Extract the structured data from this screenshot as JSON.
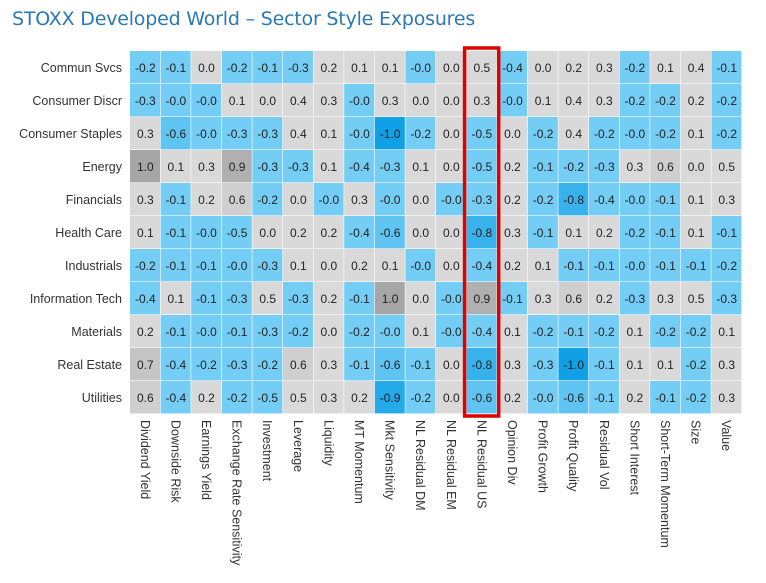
{
  "chart_data": {
    "type": "heatmap",
    "title": "STOXX Developed World – Sector Style Exposures",
    "rows": [
      "Commun Svcs",
      "Consumer Discr",
      "Consumer Staples",
      "Energy",
      "Financials",
      "Health Care",
      "Industrials",
      "Information Tech",
      "Materials",
      "Real Estate",
      "Utilities"
    ],
    "columns": [
      "Dividend Yield",
      "Downside Risk",
      "Earnings Yield",
      "Exchange Rate Sensitivity",
      "Investment",
      "Leverage",
      "Liquidity",
      "MT Momentum",
      "Mkt Sensitivity",
      "NL Residual DM",
      "NL Residual EM",
      "NL Residual US",
      "Opinion Div",
      "Profit Growth",
      "Profit Quality",
      "Residual Vol",
      "Short Interest",
      "Short-Term Momentum",
      "Size",
      "Value"
    ],
    "values": [
      [
        "-0.2",
        "-0.1",
        "0.0",
        "-0.2",
        "-0.1",
        "-0.3",
        "0.2",
        "0.1",
        "0.1",
        "-0.0",
        "0.0",
        "0.5",
        "-0.4",
        "0.0",
        "0.2",
        "0.3",
        "-0.2",
        "0.1",
        "0.4",
        "-0.1"
      ],
      [
        "-0.3",
        "-0.0",
        "-0.0",
        "0.1",
        "0.0",
        "0.4",
        "0.3",
        "-0.0",
        "0.3",
        "0.0",
        "0.0",
        "0.3",
        "-0.0",
        "0.1",
        "0.4",
        "0.3",
        "-0.2",
        "-0.2",
        "0.2",
        "-0.2"
      ],
      [
        "0.3",
        "-0.6",
        "-0.0",
        "-0.3",
        "-0.3",
        "0.4",
        "0.1",
        "-0.0",
        "-1.0",
        "-0.2",
        "0.0",
        "-0.5",
        "0.0",
        "-0.2",
        "0.4",
        "-0.2",
        "-0.0",
        "-0.2",
        "0.1",
        "-0.2"
      ],
      [
        "1.0",
        "0.1",
        "0.3",
        "0.9",
        "-0.3",
        "-0.3",
        "0.1",
        "-0.4",
        "-0.3",
        "0.1",
        "0.0",
        "-0.5",
        "0.2",
        "-0.1",
        "-0.2",
        "-0.3",
        "0.3",
        "0.6",
        "0.0",
        "0.5"
      ],
      [
        "0.3",
        "-0.1",
        "0.2",
        "0.6",
        "-0.2",
        "0.0",
        "-0.0",
        "0.3",
        "-0.0",
        "0.0",
        "-0.0",
        "-0.3",
        "0.2",
        "-0.2",
        "-0.8",
        "-0.4",
        "-0.0",
        "-0.1",
        "0.1",
        "0.3"
      ],
      [
        "0.1",
        "-0.1",
        "-0.0",
        "-0.5",
        "0.0",
        "0.2",
        "0.2",
        "-0.4",
        "-0.6",
        "0.0",
        "0.0",
        "-0.8",
        "0.3",
        "-0.1",
        "0.1",
        "0.2",
        "-0.2",
        "-0.1",
        "0.1",
        "-0.1"
      ],
      [
        "-0.2",
        "-0.1",
        "-0.1",
        "-0.0",
        "-0.3",
        "0.1",
        "0.0",
        "0.2",
        "0.1",
        "-0.0",
        "0.0",
        "-0.4",
        "0.2",
        "0.1",
        "-0.1",
        "-0.1",
        "-0.0",
        "-0.1",
        "-0.1",
        "-0.2"
      ],
      [
        "-0.4",
        "0.1",
        "-0.1",
        "-0.3",
        "0.5",
        "-0.3",
        "0.2",
        "-0.1",
        "1.0",
        "0.0",
        "-0.0",
        "0.9",
        "-0.1",
        "0.3",
        "0.6",
        "0.2",
        "-0.3",
        "0.3",
        "0.5",
        "-0.3"
      ],
      [
        "0.2",
        "-0.1",
        "-0.0",
        "-0.1",
        "-0.3",
        "-0.2",
        "0.0",
        "-0.2",
        "-0.0",
        "0.1",
        "-0.0",
        "-0.4",
        "0.1",
        "-0.2",
        "-0.1",
        "-0.2",
        "0.1",
        "-0.2",
        "-0.2",
        "0.1"
      ],
      [
        "0.7",
        "-0.4",
        "-0.2",
        "-0.3",
        "-0.2",
        "0.6",
        "0.3",
        "-0.1",
        "-0.6",
        "-0.1",
        "0.0",
        "-0.8",
        "0.3",
        "-0.3",
        "-1.0",
        "-0.1",
        "0.1",
        "0.1",
        "-0.2",
        "0.3"
      ],
      [
        "0.6",
        "-0.4",
        "0.2",
        "-0.2",
        "-0.5",
        "0.5",
        "0.3",
        "0.2",
        "-0.9",
        "-0.2",
        "0.0",
        "-0.6",
        "0.2",
        "-0.0",
        "-0.6",
        "-0.1",
        "0.2",
        "-0.1",
        "-0.2",
        "0.3"
      ]
    ],
    "highlighted_column": "NL Residual US",
    "colors": {
      "negative_light": "#73cdf5",
      "negative_strong": "#10a0e6",
      "positive_light": "#d9d9d9",
      "positive_strong": "#a6a6a6",
      "highlight_border": "#e00000",
      "title": "#2a78b8"
    },
    "legend": "none",
    "grid": false
  }
}
